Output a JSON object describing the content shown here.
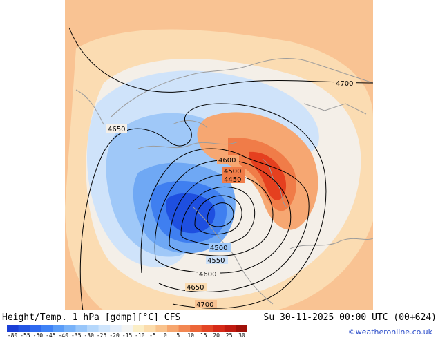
{
  "title": {
    "left": "Height/Temp. 1 hPa [gdmp][°C] CFS",
    "right": "Su 30-11-2025 00:00 UTC (00+624)"
  },
  "credit": "©weatheronline.co.uk",
  "colorbar": {
    "tick_labels": [
      "-80",
      "-55",
      "-50",
      "-45",
      "-40",
      "-35",
      "-30",
      "-25",
      "-20",
      "-15",
      "-10",
      "-5",
      "0",
      "5",
      "10",
      "15",
      "20",
      "25",
      "30"
    ],
    "colors": [
      "#1b3fd6",
      "#2456e4",
      "#2f6af0",
      "#3f82f6",
      "#5a9cf8",
      "#78b2f9",
      "#98c6fa",
      "#b5d7fb",
      "#cfe5fc",
      "#e4eefb",
      "#f4f4f2",
      "#fbeec6",
      "#fbdcac",
      "#f9c38d",
      "#f6a66e",
      "#f28752",
      "#ec6638",
      "#e34525",
      "#d62a18",
      "#c01a10",
      "#a01008"
    ]
  },
  "contour_labels": [
    "4700",
    "4650",
    "4600",
    "4500",
    "4450",
    "4500",
    "4550",
    "4600",
    "4650",
    "4700"
  ],
  "colors": {
    "background": "#f9c393",
    "cold_core": "#1e4fe0",
    "warm_core": "#e5401f",
    "contour": "#000000",
    "coastline": "#9c9c9c"
  }
}
